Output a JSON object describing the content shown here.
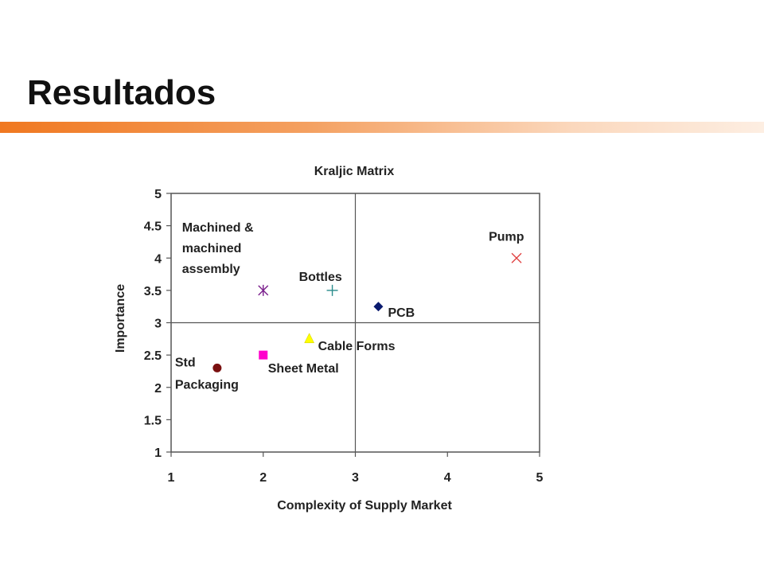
{
  "slide": {
    "title": "Resultados",
    "accent_color": "#f07820"
  },
  "chart_data": {
    "type": "scatter",
    "title": "Kraljic Matrix",
    "xlabel": "Complexity of Supply Market",
    "ylabel": "Importance",
    "xlim": [
      1,
      5
    ],
    "ylim": [
      1,
      5
    ],
    "x_ticks": [
      "1",
      "2",
      "3",
      "4",
      "5"
    ],
    "y_ticks": [
      "1",
      "1.5",
      "2",
      "2.5",
      "3",
      "3.5",
      "4",
      "4.5",
      "5"
    ],
    "divider_x": 3,
    "divider_y": 3,
    "grid": false,
    "legend": "none",
    "points": [
      {
        "label": "Machined & machined assembly",
        "label_lines": [
          "Machined &",
          "machined",
          "assembly"
        ],
        "x": 2.0,
        "y": 3.5,
        "marker": "asterisk",
        "color": "#7a1f8c"
      },
      {
        "label": "Bottles",
        "label_lines": [
          "Bottles"
        ],
        "x": 2.75,
        "y": 3.5,
        "marker": "plus",
        "color": "#2a8c8c"
      },
      {
        "label": "Pump",
        "label_lines": [
          "Pump"
        ],
        "x": 4.75,
        "y": 4.0,
        "marker": "x",
        "color": "#e04040"
      },
      {
        "label": "PCB",
        "label_lines": [
          "PCB"
        ],
        "x": 3.25,
        "y": 3.25,
        "marker": "diamond",
        "color": "#0a1a6e"
      },
      {
        "label": "Cable Forms",
        "label_lines": [
          "Cable Forms"
        ],
        "x": 2.5,
        "y": 2.75,
        "marker": "triangle",
        "color": "#ffff00"
      },
      {
        "label": "Sheet Metal",
        "label_lines": [
          "Sheet Metal"
        ],
        "x": 2.0,
        "y": 2.5,
        "marker": "square",
        "color": "#ff00cc"
      },
      {
        "label": "Std Packaging",
        "label_lines": [
          "Std",
          "Packaging"
        ],
        "x": 1.5,
        "y": 2.3,
        "marker": "circle",
        "color": "#7a1010"
      }
    ]
  }
}
